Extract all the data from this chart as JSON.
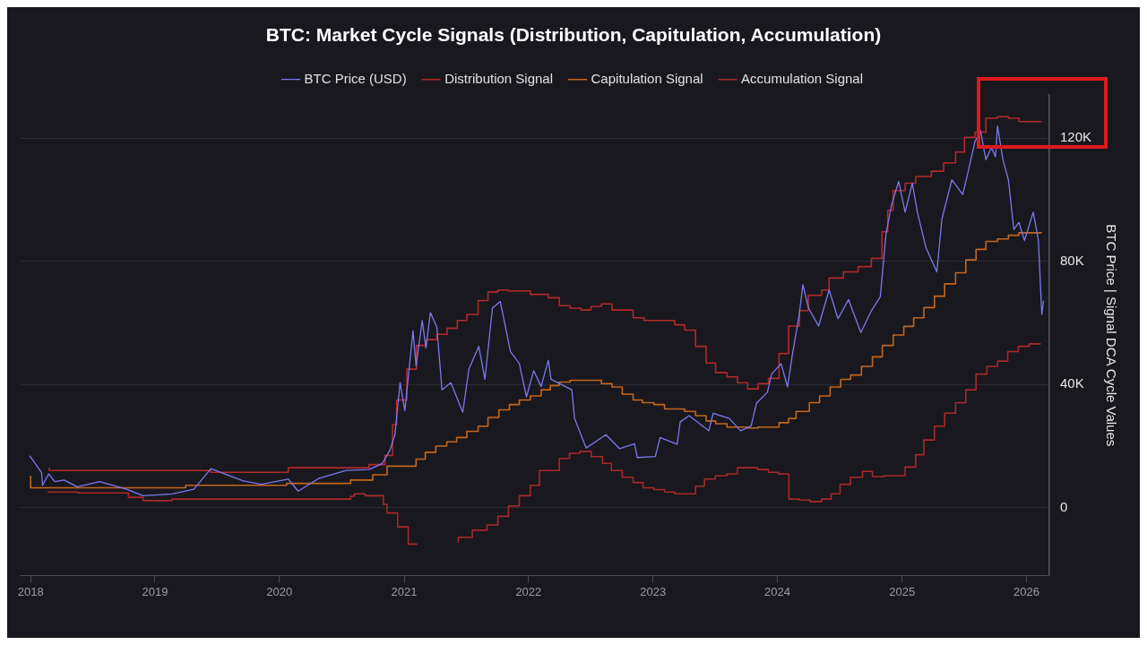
{
  "chart_data": {
    "type": "line",
    "title": "BTC: Market Cycle Signals (Distribution, Capitulation, Accumulation)",
    "ylabel": "BTC Price | Signal DCA Cycle Values",
    "xlim": [
      "2017-11-30",
      "2026-03-09"
    ],
    "xticks": [
      {
        "value": "2018-01-01",
        "label": "2018"
      },
      {
        "value": "2019-01-01",
        "label": "2019"
      },
      {
        "value": "2020-01-01",
        "label": "2020"
      },
      {
        "value": "2021-01-01",
        "label": "2021"
      },
      {
        "value": "2022-01-01",
        "label": "2022"
      },
      {
        "value": "2023-01-01",
        "label": "2023"
      },
      {
        "value": "2024-01-01",
        "label": "2024"
      },
      {
        "value": "2025-01-01",
        "label": "2025"
      },
      {
        "value": "2026-01-01",
        "label": "2026"
      }
    ],
    "ylim": [
      -22000,
      134000
    ],
    "yticks": [
      0,
      {
        "value": 40000,
        "label": "40K"
      },
      {
        "value": 80000,
        "label": "80K"
      },
      {
        "value": 120000,
        "label": "120K"
      }
    ],
    "grid": "y",
    "legend": "top",
    "marker": "none",
    "line_style": "solid",
    "series": [
      {
        "name": "BTC Price (USD)",
        "type": "line",
        "color": "#7b79f0",
        "x": [
          "2017-12-29",
          "2018-02-02",
          "2018-02-05",
          "2018-02-23",
          "2018-03-13",
          "2018-04-09",
          "2018-05-18",
          "2018-07-23",
          "2018-10-10",
          "2018-11-27",
          "2019-02-20",
          "2019-04-25",
          "2019-06-14",
          "2019-09-17",
          "2019-11-09",
          "2020-01-27",
          "2020-02-25",
          "2020-04-27",
          "2020-07-15",
          "2020-09-20",
          "2020-10-29",
          "2020-11-20",
          "2020-12-05",
          "2020-12-20",
          "2021-01-03",
          "2021-01-27",
          "2021-02-05",
          "2021-02-23",
          "2021-03-06",
          "2021-03-19",
          "2021-04-07",
          "2021-04-22",
          "2021-05-18",
          "2021-06-22",
          "2021-07-10",
          "2021-08-08",
          "2021-08-26",
          "2021-09-17",
          "2021-10-10",
          "2021-11-09",
          "2021-12-05",
          "2021-12-26",
          "2022-01-16",
          "2022-02-07",
          "2022-02-28",
          "2022-03-08",
          "2022-05-08",
          "2022-05-16",
          "2022-06-19",
          "2022-08-16",
          "2022-09-25",
          "2022-11-08",
          "2022-11-16",
          "2023-01-08",
          "2023-01-22",
          "2023-03-13",
          "2023-03-22",
          "2023-04-17",
          "2023-06-14",
          "2023-06-27",
          "2023-08-13",
          "2023-09-15",
          "2023-10-16",
          "2023-11-01",
          "2023-12-03",
          "2023-12-15",
          "2024-01-12",
          "2024-01-31",
          "2024-02-15",
          "2024-03-04",
          "2024-03-16",
          "2024-04-01",
          "2024-05-01",
          "2024-06-01",
          "2024-06-27",
          "2024-07-28",
          "2024-09-02",
          "2024-10-03",
          "2024-10-29",
          "2024-11-15",
          "2024-12-01",
          "2024-12-22",
          "2025-01-10",
          "2025-01-31",
          "2025-02-15",
          "2025-03-12",
          "2025-04-13",
          "2025-04-28",
          "2025-05-27",
          "2025-06-28",
          "2025-07-13",
          "2025-08-03",
          "2025-08-19",
          "2025-09-04",
          "2025-09-20",
          "2025-10-02",
          "2025-10-08",
          "2025-10-24",
          "2025-11-09",
          "2025-11-25",
          "2025-12-10",
          "2025-12-26",
          "2026-01-21",
          "2026-02-05",
          "2026-02-15",
          "2026-02-20"
        ],
        "values": [
          16900,
          11500,
          7300,
          11000,
          8500,
          9000,
          6800,
          8500,
          6000,
          3900,
          4500,
          6000,
          12700,
          8700,
          7600,
          9300,
          5400,
          9600,
          12100,
          12400,
          14400,
          18600,
          23700,
          40600,
          31500,
          57500,
          46000,
          60800,
          51800,
          63400,
          58600,
          38300,
          40600,
          31000,
          45000,
          52400,
          41700,
          64800,
          67000,
          50700,
          46800,
          36000,
          44500,
          39400,
          47900,
          41700,
          38300,
          29000,
          19400,
          23700,
          19200,
          20800,
          16300,
          16600,
          22800,
          20600,
          27900,
          29900,
          25000,
          30700,
          29000,
          25000,
          26500,
          34000,
          37500,
          43400,
          46800,
          39200,
          50400,
          61700,
          72400,
          65000,
          59000,
          70700,
          61400,
          67600,
          56900,
          64000,
          68500,
          89000,
          98300,
          106000,
          96000,
          105400,
          96000,
          84500,
          76600,
          93800,
          106500,
          101700,
          108700,
          119000,
          122500,
          113000,
          117000,
          114000,
          124000,
          113000,
          106500,
          90400,
          92700,
          86800,
          96000,
          86800,
          62800,
          67300
        ]
      },
      {
        "name": "Distribution Signal",
        "type": "step",
        "color": "#b3282b",
        "x": [
          "2018-02-25",
          "2019-06-14",
          "2020-01-27",
          "2020-09-20",
          "2020-11-06",
          "2020-11-28",
          "2020-12-10",
          "2021-01-09",
          "2021-02-06",
          "2021-03-07",
          "2021-04-07",
          "2021-05-07",
          "2021-06-06",
          "2021-07-04",
          "2021-08-06",
          "2021-09-04",
          "2021-10-03",
          "2021-11-03",
          "2022-01-06",
          "2022-02-28",
          "2022-04-01",
          "2022-05-03",
          "2022-06-04",
          "2022-07-03",
          "2022-08-03",
          "2022-09-03",
          "2022-11-04",
          "2022-12-06",
          "2023-03-06",
          "2023-04-04",
          "2023-05-06",
          "2023-06-06",
          "2023-07-04",
          "2023-08-06",
          "2023-09-06",
          "2023-10-06",
          "2023-11-06",
          "2023-12-06",
          "2024-01-06",
          "2024-02-03",
          "2024-03-06",
          "2024-04-01",
          "2024-05-10",
          "2024-06-01",
          "2024-07-13",
          "2024-08-25",
          "2024-10-03",
          "2024-11-03",
          "2024-11-20",
          "2024-12-06",
          "2025-01-10",
          "2025-02-10",
          "2025-03-28",
          "2025-05-03",
          "2025-06-07",
          "2025-07-03",
          "2025-08-03",
          "2025-09-04",
          "2025-10-08",
          "2025-11-09",
          "2025-12-10",
          "2026-02-15"
        ],
        "values": [
          13000,
          12100,
          11500,
          13000,
          14000,
          17000,
          27000,
          35000,
          45000,
          52700,
          54600,
          56300,
          58300,
          60800,
          62800,
          67300,
          70100,
          70700,
          70400,
          69300,
          68200,
          65600,
          64800,
          64200,
          65400,
          66200,
          64200,
          61700,
          60800,
          59400,
          57700,
          52400,
          47000,
          43900,
          42500,
          40600,
          38600,
          40300,
          42000,
          50100,
          59000,
          64000,
          69000,
          70700,
          74600,
          76600,
          78300,
          81000,
          89600,
          96600,
          103000,
          105400,
          107600,
          109300,
          112000,
          115500,
          120300,
          122000,
          126500,
          127000,
          126500,
          125400
        ]
      },
      {
        "name": "Capitulation Signal",
        "type": "step",
        "color": "#c4661d",
        "x": [
          "2018-01-01",
          "2019-04-01",
          "2020-01-22",
          "2020-07-28",
          "2020-10-01",
          "2020-11-12",
          "2021-02-05",
          "2021-03-04",
          "2021-04-04",
          "2021-05-06",
          "2021-06-04",
          "2021-07-04",
          "2021-08-06",
          "2021-09-04",
          "2021-10-06",
          "2021-11-06",
          "2021-12-05",
          "2022-01-06",
          "2022-02-07",
          "2022-03-06",
          "2022-04-01",
          "2022-05-03",
          "2022-07-01",
          "2022-08-03",
          "2022-09-03",
          "2022-10-03",
          "2022-11-04",
          "2022-12-01",
          "2023-01-04",
          "2023-02-04",
          "2023-04-04",
          "2023-05-06",
          "2023-06-06",
          "2023-07-04",
          "2023-08-06",
          "2023-10-06",
          "2023-11-06",
          "2024-01-06",
          "2024-02-03",
          "2024-02-25",
          "2024-04-04",
          "2024-05-04",
          "2024-06-04",
          "2024-07-05",
          "2024-08-03",
          "2024-09-04",
          "2024-10-06",
          "2024-11-04",
          "2024-12-06",
          "2025-01-06",
          "2025-02-04",
          "2025-03-06",
          "2025-04-06",
          "2025-05-06",
          "2025-06-07",
          "2025-07-07",
          "2025-08-06",
          "2025-09-04",
          "2025-10-08",
          "2025-11-09",
          "2025-12-10",
          "2026-02-15"
        ],
        "values": [
          10400,
          6500,
          7300,
          7900,
          9000,
          10700,
          13500,
          15800,
          18000,
          20000,
          21400,
          22800,
          24800,
          26500,
          29300,
          31800,
          33500,
          35000,
          36300,
          38300,
          39700,
          40800,
          41400,
          41400,
          40300,
          39200,
          36900,
          35000,
          34100,
          33500,
          32100,
          31300,
          29900,
          28200,
          27300,
          26200,
          25900,
          26200,
          27600,
          29000,
          31300,
          34100,
          36300,
          39200,
          41700,
          43100,
          45900,
          49000,
          52700,
          56100,
          58900,
          61700,
          65000,
          68700,
          72700,
          76300,
          80500,
          83900,
          86500,
          87300,
          88500,
          89300
        ]
      },
      {
        "name": "Accumulation Signal",
        "type": "step",
        "color": "#a8292b",
        "x": [
          "2018-02-22",
          "2018-05-20",
          "2018-10-15",
          "2018-11-27",
          "2019-02-20",
          "2020-07-28",
          "2020-08-08",
          "2020-09-09",
          "2020-11-01",
          "2020-11-12",
          "2020-12-13",
          "2021-01-13",
          "2021-02-09",
          "2021-04-01",
          "2021-06-09",
          "2021-07-20",
          "2021-09-01",
          "2021-10-03",
          "2021-11-03",
          "2021-12-05",
          "2022-01-06",
          "2022-02-02",
          "2022-04-01",
          "2022-05-01",
          "2022-06-01",
          "2022-07-04",
          "2022-08-06",
          "2022-09-01",
          "2022-10-03",
          "2022-11-04",
          "2022-12-03",
          "2023-01-04",
          "2023-02-04",
          "2023-03-06",
          "2023-05-06",
          "2023-06-01",
          "2023-07-03",
          "2023-08-06",
          "2023-09-06",
          "2023-11-04",
          "2023-12-06",
          "2024-01-04",
          "2024-02-04",
          "2024-03-06",
          "2024-04-06",
          "2024-05-10",
          "2024-06-07",
          "2024-07-03",
          "2024-08-03",
          "2024-09-07",
          "2024-10-06",
          "2024-11-09",
          "2025-01-10",
          "2025-02-10",
          "2025-03-06",
          "2025-04-06",
          "2025-05-06",
          "2025-06-07",
          "2025-07-07",
          "2025-08-06",
          "2025-09-07",
          "2025-10-08",
          "2025-11-07",
          "2025-12-08",
          "2026-01-09",
          "2026-02-12"
        ],
        "values": [
          5400,
          5100,
          4800,
          3400,
          2300,
          2800,
          3700,
          4500,
          3900,
          1100,
          -1700,
          -6200,
          -11800,
          null,
          -11300,
          -9600,
          -7300,
          -5600,
          -2800,
          600,
          3900,
          7300,
          12100,
          16000,
          17700,
          18300,
          16600,
          14400,
          12100,
          9900,
          8200,
          6500,
          5900,
          5100,
          4500,
          7000,
          9300,
          10400,
          11000,
          13000,
          12400,
          11500,
          11000,
          2800,
          2500,
          2000,
          2800,
          4500,
          7600,
          9900,
          11800,
          10100,
          10400,
          13200,
          17200,
          22000,
          26500,
          30700,
          34100,
          38300,
          43400,
          45900,
          47600,
          50700,
          52400,
          53200
        ]
      }
    ]
  }
}
